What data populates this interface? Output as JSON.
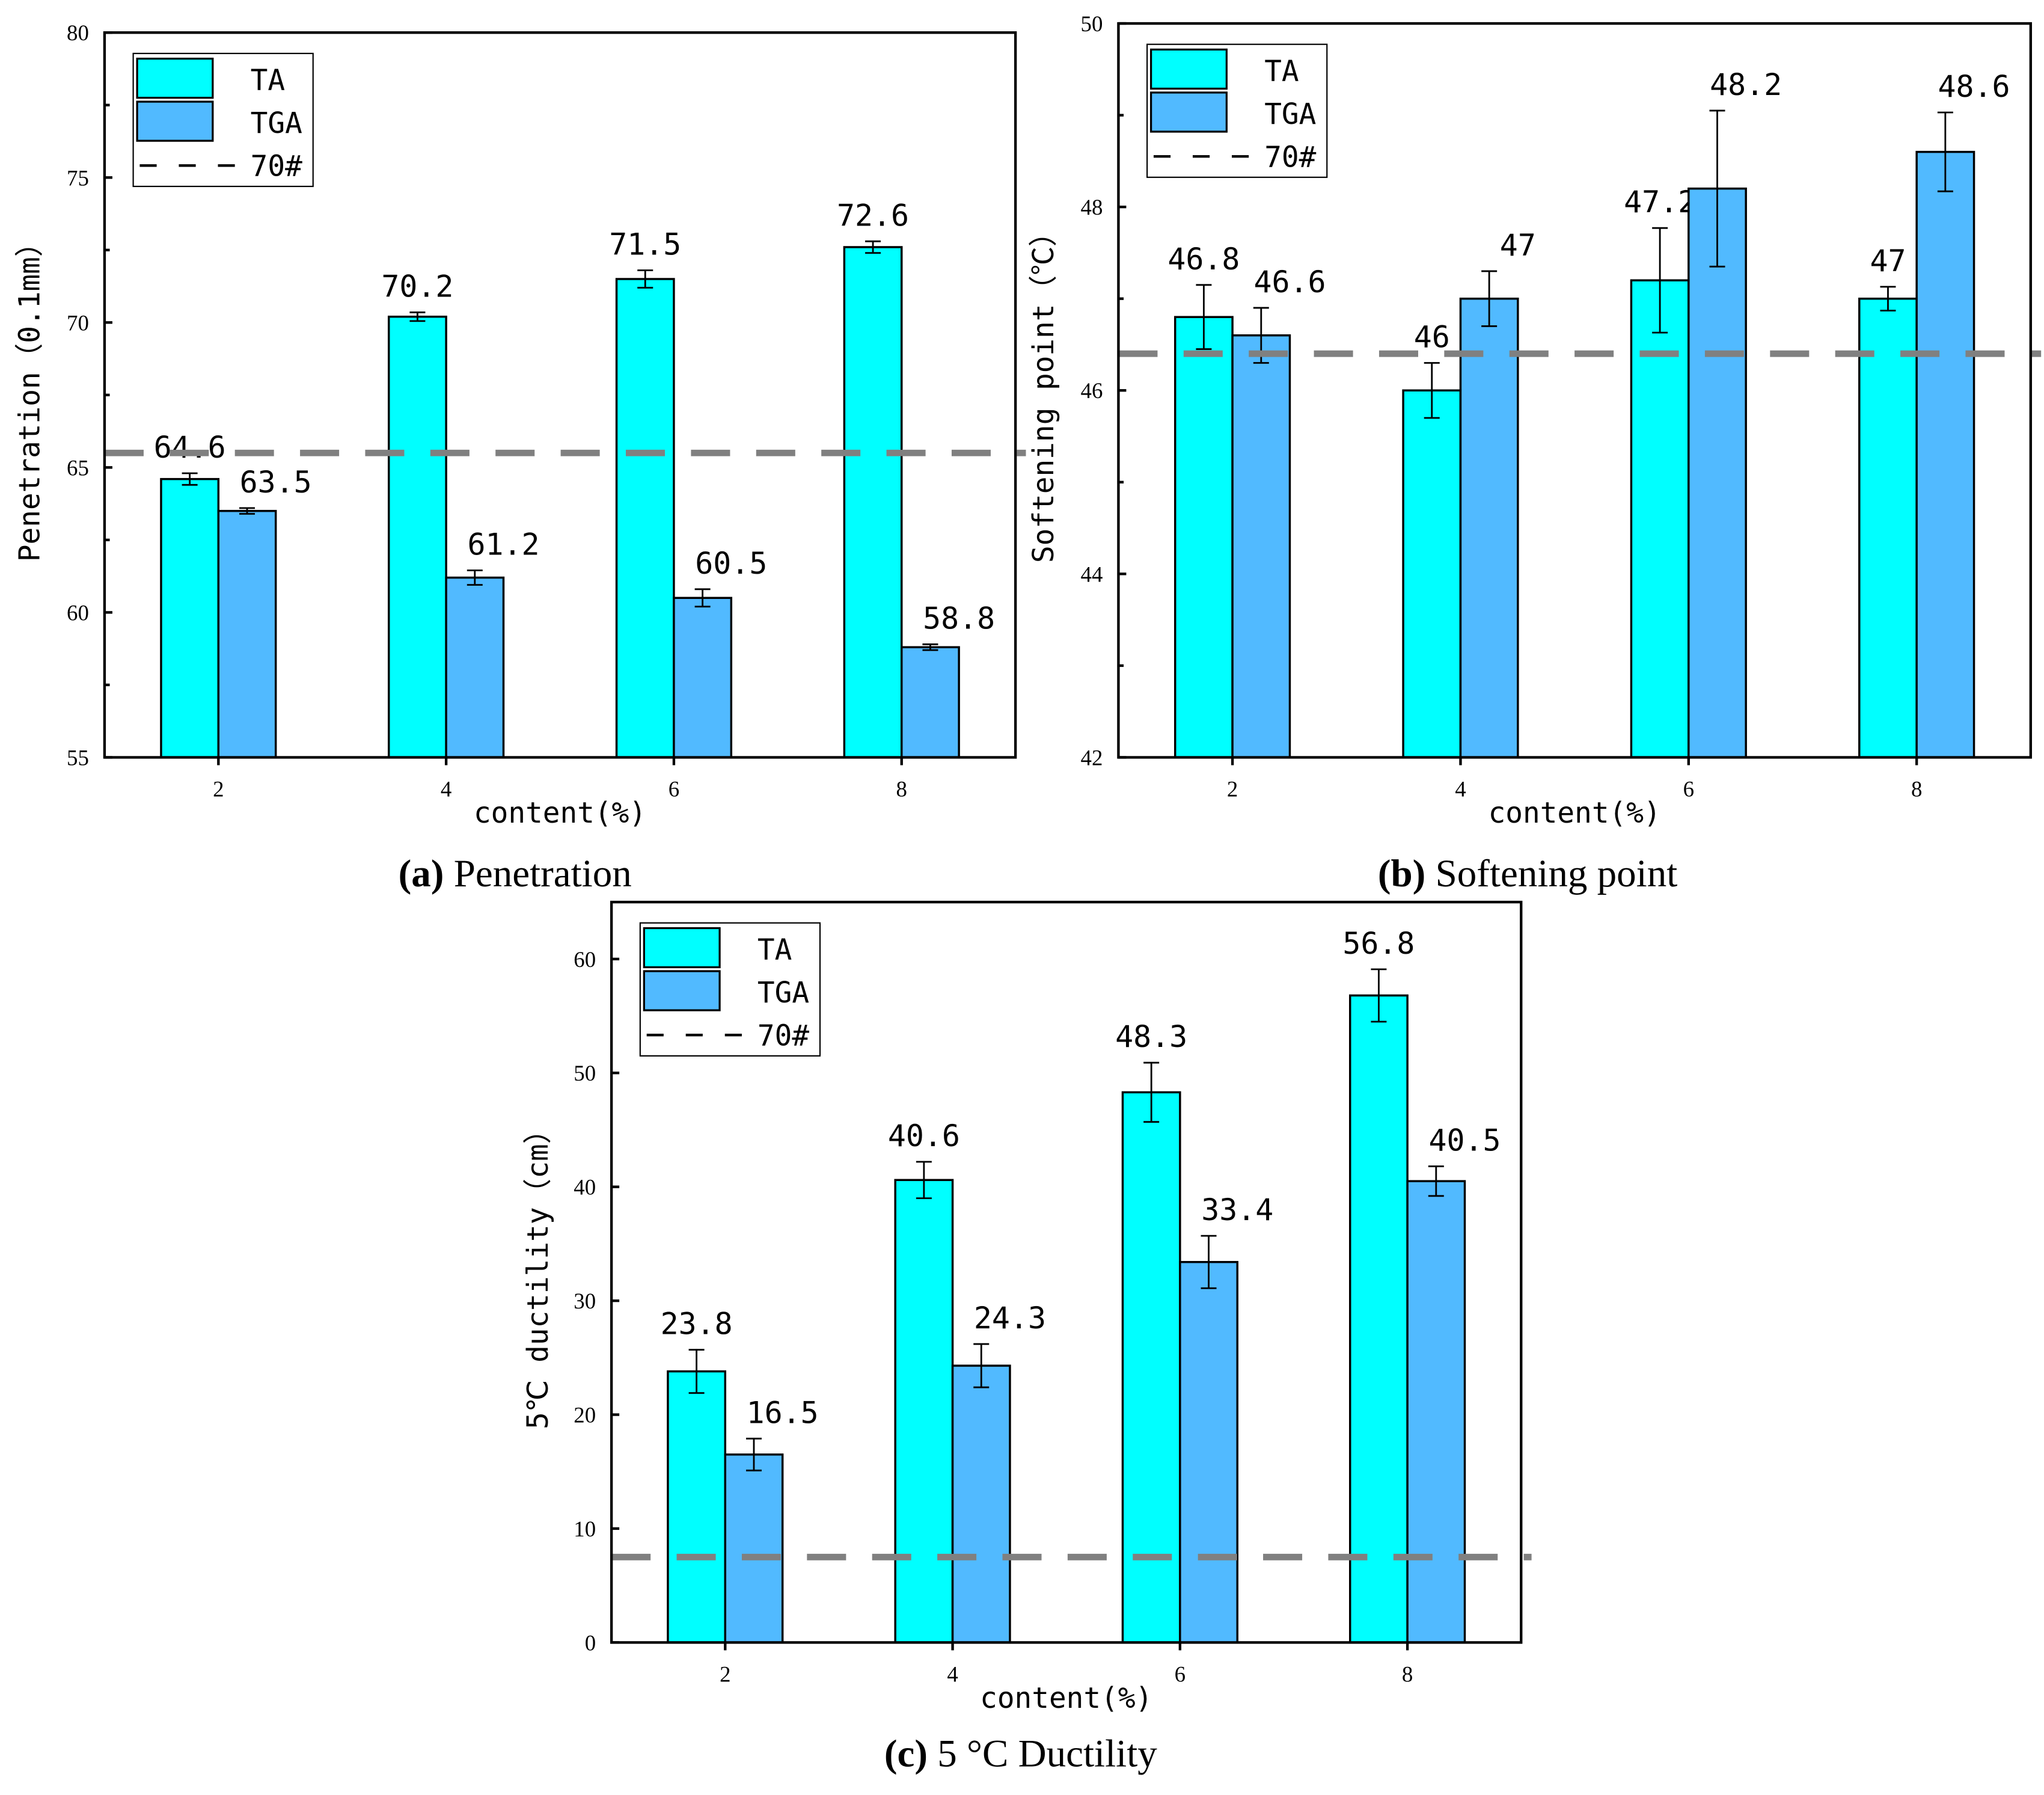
{
  "colors": {
    "TA": "#00FFFF",
    "TGA": "#51BAFF",
    "reference": "#808080"
  },
  "chart_data": [
    {
      "type": "bar",
      "caption_letter": "(a)",
      "caption_text": " Penetration",
      "xlabel": "content(%)",
      "ylabel": "Penetration（0.1mm）",
      "categories": [
        "2",
        "4",
        "6",
        "8"
      ],
      "ylim": [
        55,
        80
      ],
      "yticks": [
        55,
        60,
        65,
        70,
        75,
        80
      ],
      "legend": {
        "position": "top-left",
        "entries": [
          "TA",
          "TGA",
          "70#"
        ]
      },
      "reference_line": {
        "name": "70#",
        "value": 65.5
      },
      "series": [
        {
          "name": "TA",
          "values": [
            64.6,
            70.2,
            71.5,
            72.6
          ],
          "errors": [
            0.2,
            0.15,
            0.3,
            0.2
          ],
          "labels": [
            "64.6",
            "70.2",
            "71.5",
            "72.6"
          ]
        },
        {
          "name": "TGA",
          "values": [
            63.5,
            61.2,
            60.5,
            58.8
          ],
          "errors": [
            0.1,
            0.25,
            0.3,
            0.1
          ],
          "labels": [
            "63.5",
            "61.2",
            "60.5",
            "58.8"
          ]
        }
      ]
    },
    {
      "type": "bar",
      "caption_letter": "(b)",
      "caption_text": " Softening point",
      "xlabel": "content(%)",
      "ylabel": "Softening point（℃）",
      "categories": [
        "2",
        "4",
        "6",
        "8"
      ],
      "ylim": [
        42,
        50
      ],
      "yticks": [
        42,
        44,
        46,
        48,
        50
      ],
      "legend": {
        "position": "top-left",
        "entries": [
          "TA",
          "TGA",
          "70#"
        ]
      },
      "reference_line": {
        "name": "70#",
        "value": 46.4
      },
      "series": [
        {
          "name": "TA",
          "values": [
            46.8,
            46.0,
            47.2,
            47.0
          ],
          "errors": [
            0.35,
            0.3,
            0.57,
            0.13
          ],
          "labels": [
            "46.8",
            "46",
            "47.2",
            "47"
          ]
        },
        {
          "name": "TGA",
          "values": [
            46.6,
            47.0,
            48.2,
            48.6
          ],
          "errors": [
            0.3,
            0.3,
            0.85,
            0.43
          ],
          "labels": [
            "46.6",
            "47",
            "48.2",
            "48.6"
          ]
        }
      ]
    },
    {
      "type": "bar",
      "caption_letter": "(c)",
      "caption_text": " 5 °C Ductility",
      "xlabel": "content(%)",
      "ylabel": "5℃ ductility（cm）",
      "categories": [
        "2",
        "4",
        "6",
        "8"
      ],
      "ylim": [
        0,
        65
      ],
      "yticks": [
        0,
        10,
        20,
        30,
        40,
        50,
        60
      ],
      "legend": {
        "position": "top-left",
        "entries": [
          "TA",
          "TGA",
          "70#"
        ]
      },
      "reference_line": {
        "name": "70#",
        "value": 7.5
      },
      "series": [
        {
          "name": "TA",
          "values": [
            23.8,
            40.6,
            48.3,
            56.8
          ],
          "errors": [
            1.9,
            1.6,
            2.6,
            2.3
          ],
          "labels": [
            "23.8",
            "40.6",
            "48.3",
            "56.8"
          ]
        },
        {
          "name": "TGA",
          "values": [
            16.5,
            24.3,
            33.4,
            40.5
          ],
          "errors": [
            1.4,
            1.9,
            2.3,
            1.3
          ],
          "labels": [
            "16.5",
            "24.3",
            "33.4",
            "40.5"
          ]
        }
      ]
    }
  ]
}
